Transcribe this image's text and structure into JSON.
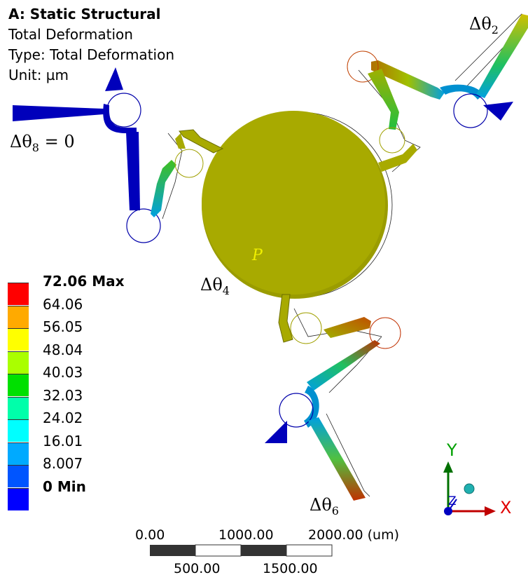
{
  "header": {
    "title": "A: Static Structural",
    "result": "Total Deformation",
    "type": "Type: Total Deformation",
    "unit": "Unit: µm"
  },
  "legend": {
    "levels": [
      {
        "label": "72.06 Max",
        "color": "#ff0000",
        "bold": true
      },
      {
        "label": "64.06",
        "color": "#ffaa00"
      },
      {
        "label": "56.05",
        "color": "#ffff00"
      },
      {
        "label": "48.04",
        "color": "#aaff00"
      },
      {
        "label": "40.03",
        "color": "#00e000"
      },
      {
        "label": "32.03",
        "color": "#00ffaa"
      },
      {
        "label": "24.02",
        "color": "#00ffff"
      },
      {
        "label": "16.01",
        "color": "#00aaff"
      },
      {
        "label": "8.007",
        "color": "#0055ff"
      },
      {
        "label": "0 Min",
        "color": "#0000ff",
        "bold": true
      }
    ]
  },
  "annotations": {
    "theta2_sym": "Δθ",
    "theta2_sub": "2",
    "theta4_sym": "Δθ",
    "theta4_sub": "4",
    "theta6_sym": "Δθ",
    "theta6_sub": "6",
    "theta8_sym": "Δθ",
    "theta8_sub": "8",
    "theta8_eq": " = 0",
    "platform": "P"
  },
  "scale_bar": {
    "top_labels": [
      "0.00",
      "1000.00",
      "2000.00 (um)"
    ],
    "bottom_labels": [
      "500.00",
      "1500.00"
    ]
  },
  "triad": {
    "x_label": "X",
    "y_label": "Y",
    "z_label": "Z"
  },
  "colors": {
    "platform": "#a8aa00",
    "blue": "#0000bb",
    "scale_dark": "#333333"
  }
}
